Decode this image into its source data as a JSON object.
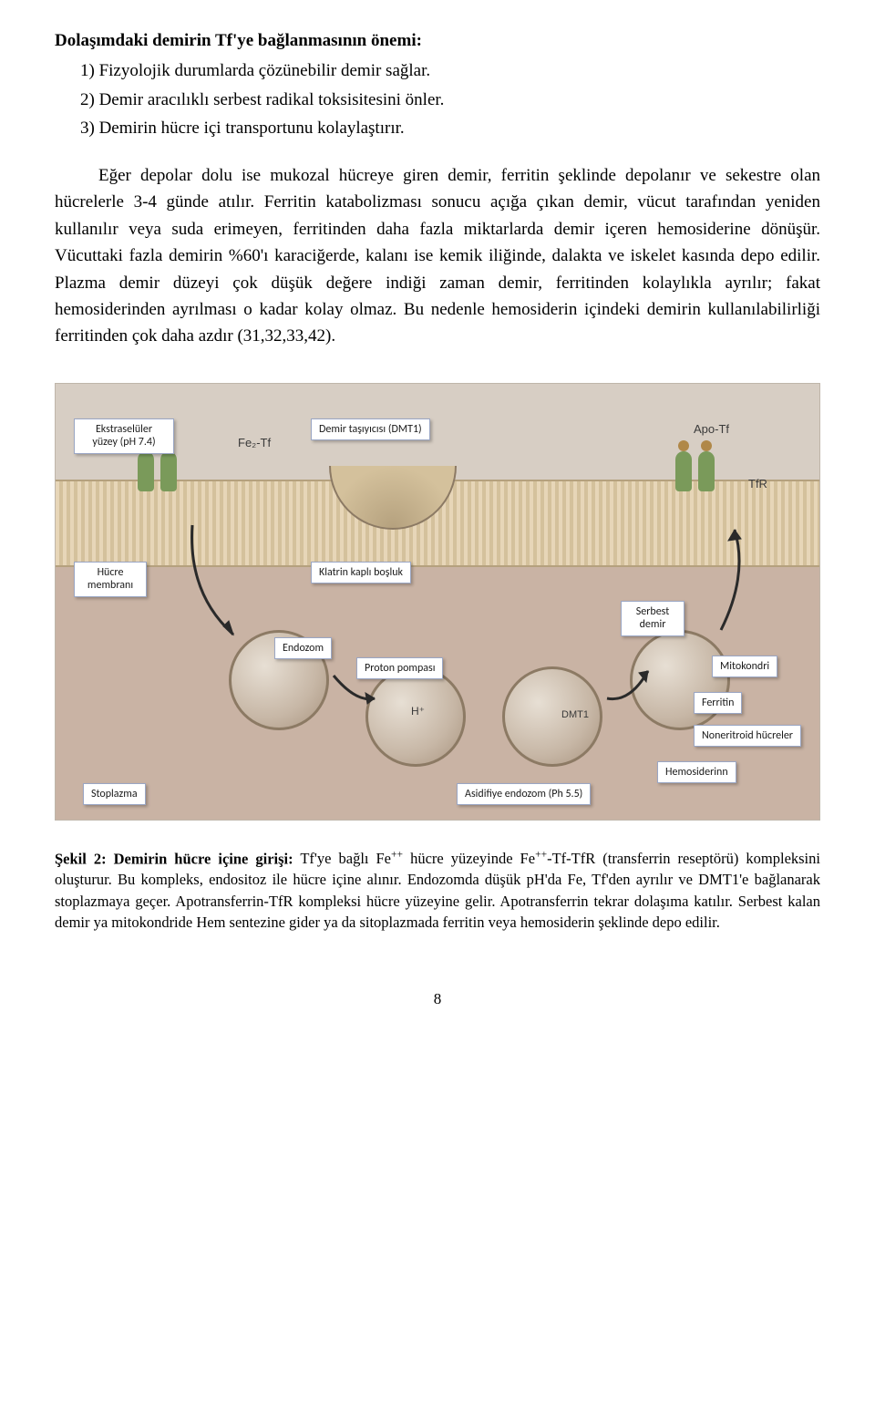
{
  "heading": "Dolaşımdaki demirin Tf'ye bağlanmasının önemi:",
  "list": [
    "1) Fizyolojik durumlarda çözünebilir demir sağlar.",
    "2) Demir aracılıklı serbest radikal toksisitesini önler.",
    "3) Demirin hücre içi transportunu kolaylaştırır."
  ],
  "paragraph": "Eğer depolar dolu ise mukozal hücreye giren demir, ferritin şeklinde depolanır ve sekestre olan hücrelerle 3-4 günde atılır. Ferritin katabolizması sonucu açığa çıkan demir, vücut tarafından yeniden kullanılır veya suda erimeyen, ferritinden daha fazla miktarlarda demir içeren hemosiderine dönüşür. Vücuttaki fazla demirin %60'ı karaciğerde, kalanı ise kemik iliğinde, dalakta ve iskelet kasında depo edilir. Plazma demir düzeyi çok düşük değere indiği zaman demir, ferritinden kolaylıkla ayrılır; fakat hemosiderinden ayrılması o kadar kolay olmaz. Bu nedenle hemosiderin içindeki demirin kullanılabilirliği ferritinden çok daha azdır (31,32,33,42).",
  "diagram": {
    "labels": {
      "ekstraseluler": "Ekstraselüler yüzey (pH 7.4)",
      "dmt1": "Demir taşıyıcısı (DMT1)",
      "hucre_membrani": "Hücre membranı",
      "klatrin": "Klatrin kaplı boşluk",
      "endozom": "Endozom",
      "proton": "Proton pompası",
      "serbest_demir": "Serbest demir",
      "mitokondri": "Mitokondri",
      "ferritin": "Ferritin",
      "noneritroid": "Noneritroid hücreler",
      "hemosiderin": "Hemosiderinn",
      "stoplazma": "Stoplazma",
      "asidifiye": "Asidifiye endozom (Ph 5.5)"
    },
    "texts": {
      "fe2tf": "Fe₂-Tf",
      "apotf": "Apo-Tf",
      "tfr": "TfR",
      "hplus": "H⁺",
      "dmt1_inner": "DMT1"
    },
    "colors": {
      "bg_top": "#d7cec4",
      "bg_membrane": "#e5dfd6",
      "bg_cytoplasm": "#c9b3a4",
      "membrane_stripe1": "#e7d6b8",
      "membrane_stripe2": "#d4c19c",
      "receptor": "#7a9a5a",
      "ligand": "#b08848",
      "endosome_border": "#8c7a64",
      "label_border": "#9aa6c4",
      "label_bg": "#ffffff",
      "label_font": "Calibri",
      "label_fontsize": 12
    }
  },
  "caption": {
    "title": "Şekil 2: Demirin hücre içine girişi:",
    "body_html": " Tf'ye bağlı Fe<span class=\"sup\">++</span> hücre yüzeyinde Fe<span class=\"sup\">++</span>-Tf-TfR (transferrin reseptörü) kompleksini oluşturur. Bu kompleks, endositoz ile hücre içine alınır. Endozomda düşük pH'da Fe, Tf'den ayrılır ve DMT1'e bağlanarak stoplazmaya geçer. Apotransferrin-TfR kompleksi hücre yüzeyine gelir. Apotransferrin tekrar dolaşıma katılır. Serbest kalan demir ya mitokondride Hem sentezine gider ya da sitoplazmada ferritin veya hemosiderin şeklinde depo edilir."
  },
  "page_number": "8"
}
